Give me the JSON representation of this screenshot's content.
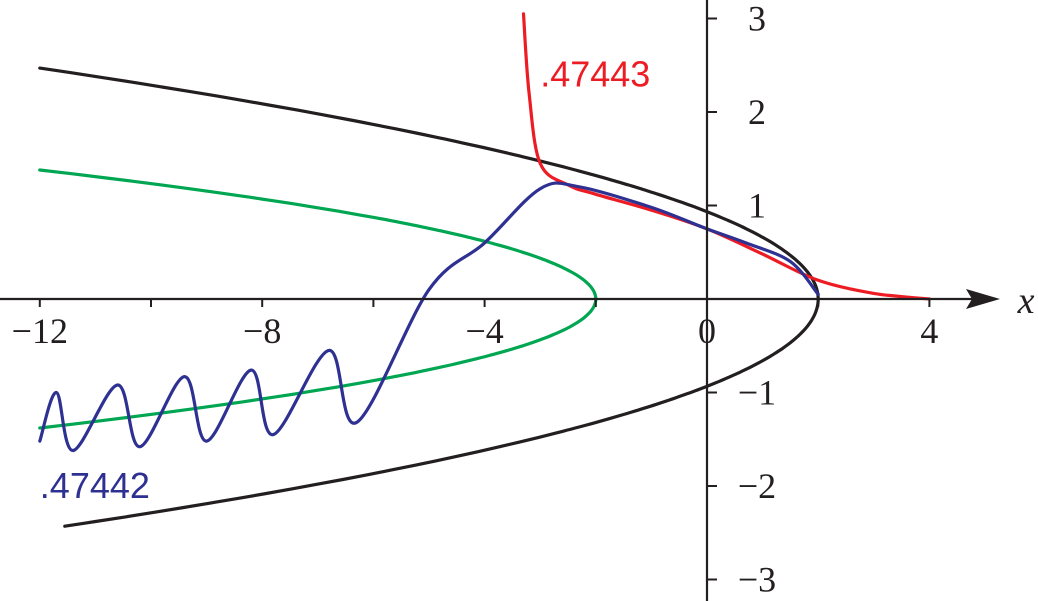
{
  "chart_data": {
    "type": "line",
    "title": "",
    "xlabel": "x",
    "ylabel": "",
    "xlim": [
      -12,
      4
    ],
    "ylim": [
      -3,
      3
    ],
    "x_ticks": [
      -12,
      -8,
      -4,
      0,
      4
    ],
    "x_tick_labels": [
      "−12",
      "−8",
      "−4",
      "0",
      "4"
    ],
    "y_ticks": [
      -3,
      -2,
      -1,
      1,
      2,
      3
    ],
    "y_tick_labels": [
      "−3",
      "−2",
      "−1",
      "1",
      "2",
      "3"
    ],
    "grid": false,
    "series": [
      {
        "color": "#231f20",
        "parametric": "x = 2 - 2*y^2 + y^4/4 (sketch)",
        "points": [
          [
            -12,
            2.47
          ],
          [
            -8,
            1.97
          ],
          [
            -4,
            1.45
          ],
          [
            -2,
            1.15
          ],
          [
            0,
            0.77
          ],
          [
            1,
            0.5
          ],
          [
            2,
            0.0
          ],
          [
            1,
            -0.5
          ],
          [
            0,
            -0.77
          ],
          [
            -2,
            -1.15
          ],
          [
            -4,
            -1.45
          ],
          [
            -8,
            -1.97
          ],
          [
            -12,
            -2.47
          ]
        ]
      },
      {
        "color": "#00a651",
        "points": [
          [
            -12,
            1.38
          ],
          [
            -8,
            1.15
          ],
          [
            -5,
            0.85
          ],
          [
            -3.5,
            0.55
          ],
          [
            -2,
            0.0
          ],
          [
            -3.5,
            -0.55
          ],
          [
            -5,
            -0.85
          ],
          [
            -8,
            -1.15
          ],
          [
            -12,
            -1.38
          ]
        ]
      },
      {
        "name": ".47443",
        "color": "#ed1c24",
        "points": [
          [
            -3.3,
            3.05
          ],
          [
            -3.2,
            2.2
          ],
          [
            -3.0,
            1.45
          ],
          [
            -2.5,
            1.22
          ],
          [
            -2,
            1.12
          ],
          [
            -1,
            0.95
          ],
          [
            0,
            0.75
          ],
          [
            1,
            0.48
          ],
          [
            2,
            0.2
          ],
          [
            3,
            0.06
          ],
          [
            4,
            0.0
          ]
        ]
      },
      {
        "name": ".47442",
        "color": "#2e3192",
        "points": [
          [
            -12,
            -1.52
          ],
          [
            -11.7,
            -1.0
          ],
          [
            -11.4,
            -1.62
          ],
          [
            -10.6,
            -0.92
          ],
          [
            -10.2,
            -1.58
          ],
          [
            -9.4,
            -0.83
          ],
          [
            -9.0,
            -1.52
          ],
          [
            -8.2,
            -0.76
          ],
          [
            -7.8,
            -1.45
          ],
          [
            -6.8,
            -0.55
          ],
          [
            -6.3,
            -1.32
          ],
          [
            -5.0,
            0.1
          ],
          [
            -4.0,
            0.6
          ],
          [
            -3.0,
            1.18
          ],
          [
            -2.3,
            1.2
          ],
          [
            -1,
            0.98
          ],
          [
            0,
            0.75
          ],
          [
            0.7,
            0.6
          ],
          [
            1.5,
            0.4
          ],
          [
            2,
            0.05
          ]
        ]
      }
    ],
    "annotations": [
      {
        "text": ".47443",
        "color": "#ed1c24",
        "x": -3.0,
        "y": 2.4
      },
      {
        "text": ".47442",
        "color": "#2e3192",
        "x": -12.0,
        "y": -2.0
      }
    ]
  }
}
